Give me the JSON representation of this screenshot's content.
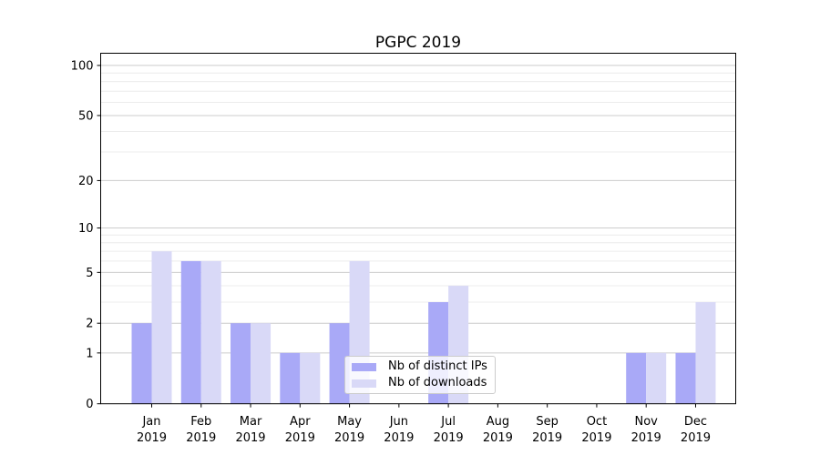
{
  "chart_data": {
    "type": "bar",
    "title": "PGPC 2019",
    "categories": [
      "Jan 2019",
      "Feb 2019",
      "Mar 2019",
      "Apr 2019",
      "May 2019",
      "Jun 2019",
      "Jul 2019",
      "Aug 2019",
      "Sep 2019",
      "Oct 2019",
      "Nov 2019",
      "Dec 2019"
    ],
    "series": [
      {
        "name": "Nb of distinct IPs",
        "color": "#a9a9f7",
        "values": [
          2,
          6,
          2,
          1,
          2,
          0,
          3,
          0,
          0,
          0,
          1,
          1
        ]
      },
      {
        "name": "Nb of downloads",
        "color": "#d9d9f7",
        "values": [
          7,
          6,
          2,
          1,
          6,
          0,
          4,
          0,
          0,
          0,
          1,
          3
        ]
      }
    ],
    "xlabel": "",
    "ylabel": "",
    "yscale": "log1p",
    "ylim": [
      0,
      117
    ],
    "y_major_ticks": [
      0,
      1,
      2,
      5,
      10,
      20,
      50,
      100
    ],
    "y_minor_gridlines": [
      3,
      4,
      6,
      7,
      8,
      9,
      30,
      40,
      60,
      70,
      80,
      90
    ],
    "grid": true,
    "legend_position": "lower center",
    "colors": {
      "major_grid": "#cccccc",
      "minor_grid": "#ececec",
      "spine": "#000000",
      "text": "#000000"
    }
  }
}
